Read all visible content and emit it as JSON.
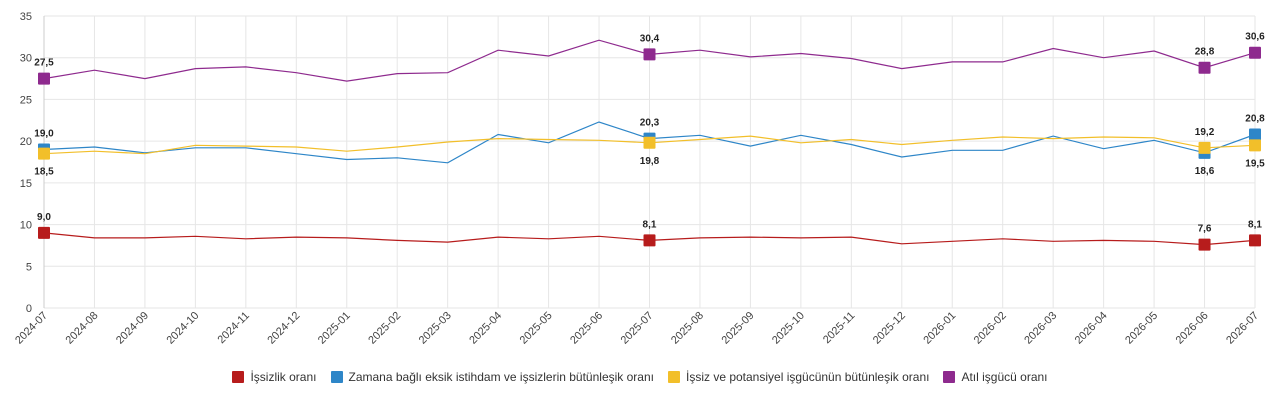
{
  "chart_data": {
    "type": "line",
    "categories": [
      "2024-07",
      "2024-08",
      "2024-09",
      "2024-10",
      "2024-11",
      "2024-12",
      "2025-01",
      "2025-02",
      "2025-03",
      "2025-04",
      "2025-05",
      "2025-06",
      "2025-07",
      "2025-08",
      "2025-09",
      "2025-10",
      "2025-11",
      "2025-12",
      "2026-01",
      "2026-02",
      "2026-03",
      "2026-04",
      "2026-05",
      "2026-06",
      "2026-07"
    ],
    "ylim": [
      0,
      35
    ],
    "yticks": [
      0,
      5,
      10,
      15,
      20,
      25,
      30,
      35
    ],
    "grid": true,
    "legend_position": "bottom",
    "series": [
      {
        "name": "İşsizlik oranı",
        "color": "#b71c1c",
        "values": [
          9.0,
          8.4,
          8.4,
          8.6,
          8.3,
          8.5,
          8.4,
          8.1,
          7.9,
          8.5,
          8.3,
          8.6,
          8.1,
          8.4,
          8.5,
          8.4,
          8.5,
          7.7,
          8.0,
          8.3,
          8.0,
          8.1,
          8.0,
          7.6,
          8.1
        ],
        "labels": [
          {
            "index": 0,
            "text": "9,0",
            "pos": "above"
          },
          {
            "index": 12,
            "text": "8,1",
            "pos": "above"
          },
          {
            "index": 23,
            "text": "7,6",
            "pos": "above"
          },
          {
            "index": 24,
            "text": "8,1",
            "pos": "above"
          }
        ]
      },
      {
        "name": "Zamana bağlı eksik istihdam ve işsizlerin bütünleşik oranı",
        "color": "#2e86c8",
        "values": [
          19.0,
          19.3,
          18.6,
          19.2,
          19.2,
          18.5,
          17.8,
          18.0,
          17.4,
          20.8,
          19.8,
          22.3,
          20.3,
          20.7,
          19.4,
          20.7,
          19.6,
          18.1,
          18.9,
          18.9,
          20.6,
          19.1,
          20.1,
          18.6,
          20.8
        ],
        "labels": [
          {
            "index": 0,
            "text": "19,0",
            "pos": "above"
          },
          {
            "index": 12,
            "text": "20,3",
            "pos": "above"
          },
          {
            "index": 23,
            "text": "18,6",
            "pos": "below"
          },
          {
            "index": 24,
            "text": "20,8",
            "pos": "above"
          }
        ]
      },
      {
        "name": "İşsiz ve potansiyel işgücünün bütünleşik oranı",
        "color": "#f2bf2a",
        "values": [
          18.5,
          18.8,
          18.5,
          19.5,
          19.4,
          19.3,
          18.8,
          19.3,
          19.9,
          20.3,
          20.2,
          20.1,
          19.8,
          20.2,
          20.6,
          19.8,
          20.2,
          19.6,
          20.1,
          20.5,
          20.3,
          20.5,
          20.4,
          19.2,
          19.5
        ],
        "labels": [
          {
            "index": 0,
            "text": "18,5",
            "pos": "below"
          },
          {
            "index": 12,
            "text": "19,8",
            "pos": "below"
          },
          {
            "index": 23,
            "text": "19,2",
            "pos": "above"
          },
          {
            "index": 24,
            "text": "19,5",
            "pos": "below"
          }
        ]
      },
      {
        "name": "Atıl işgücü oranı",
        "color": "#8e2a8e",
        "values": [
          27.5,
          28.5,
          27.5,
          28.7,
          28.9,
          28.2,
          27.2,
          28.1,
          28.2,
          30.9,
          30.2,
          32.1,
          30.4,
          30.9,
          30.1,
          30.5,
          29.9,
          28.7,
          29.5,
          29.5,
          31.1,
          30.0,
          30.8,
          28.8,
          30.6
        ],
        "labels": [
          {
            "index": 0,
            "text": "27,5",
            "pos": "above"
          },
          {
            "index": 12,
            "text": "30,4",
            "pos": "above"
          },
          {
            "index": 23,
            "text": "28,8",
            "pos": "above"
          },
          {
            "index": 24,
            "text": "30,6",
            "pos": "above"
          }
        ]
      }
    ]
  }
}
